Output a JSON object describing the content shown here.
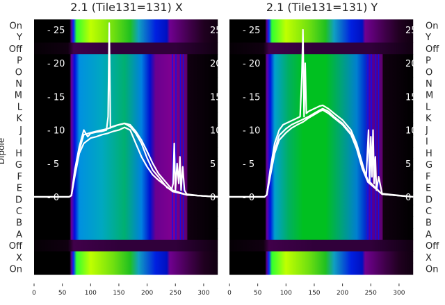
{
  "chart_data": [
    {
      "type": "heatmap",
      "title": "2.1 (Tile131=131) X",
      "ylabel": "Dipole",
      "row_labels": [
        "On",
        "Y",
        "Off",
        "P",
        "O",
        "N",
        "M",
        "L",
        "K",
        "J",
        "I",
        "H",
        "G",
        "F",
        "E",
        "D",
        "C",
        "B",
        "A",
        "Off",
        "X",
        "On"
      ],
      "xticks": [
        0,
        50,
        100,
        150,
        200,
        250,
        300
      ],
      "xlim": [
        0,
        325
      ],
      "inner_yticks": [
        0,
        5,
        10,
        15,
        20,
        25
      ],
      "inner_ylim": [
        0,
        25
      ],
      "overlay_traces": [
        {
          "name": "trace-1",
          "x": [
            0,
            62,
            66,
            72,
            80,
            88,
            95,
            100,
            110,
            120,
            128,
            131,
            133,
            135,
            138,
            145,
            160,
            170,
            180,
            190,
            200,
            210,
            220,
            235,
            243,
            246,
            248,
            250,
            253,
            256,
            258,
            260,
            263,
            266,
            270,
            290,
            325
          ],
          "y": [
            0,
            0,
            0.2,
            4,
            7.5,
            10,
            9,
            9.5,
            9.7,
            9.8,
            10,
            12,
            26,
            10.3,
            10.5,
            10.7,
            11,
            10.5,
            9.5,
            8,
            5.8,
            4,
            3,
            1.4,
            1,
            2,
            8,
            1,
            5,
            2,
            6,
            1,
            4.5,
            1,
            0.4,
            0.2,
            0
          ]
        },
        {
          "name": "trace-2",
          "x": [
            0,
            62,
            66,
            72,
            80,
            88,
            100,
            110,
            120,
            130,
            140,
            150,
            160,
            170,
            180,
            190,
            200,
            210,
            220,
            235,
            245,
            270,
            325
          ],
          "y": [
            0,
            0,
            0.2,
            3,
            6.5,
            8,
            8.8,
            9,
            9.3,
            9.5,
            9.8,
            10,
            10.4,
            10,
            8,
            6,
            4.5,
            3.3,
            2.5,
            1.5,
            0.8,
            0.3,
            0
          ]
        },
        {
          "name": "trace-3",
          "x": [
            0,
            62,
            66,
            72,
            80,
            88,
            100,
            110,
            120,
            130,
            140,
            150,
            160,
            170,
            180,
            190,
            200,
            210,
            220,
            235,
            245,
            270,
            325
          ],
          "y": [
            0,
            0,
            0.2,
            3.5,
            7,
            9.3,
            9.6,
            9.8,
            10,
            10.2,
            10.5,
            10.8,
            11,
            10.8,
            9.8,
            8.5,
            6.8,
            5,
            3.5,
            2,
            1,
            0.3,
            0
          ]
        }
      ]
    },
    {
      "type": "heatmap",
      "title": "2.1 (Tile131=131) Y",
      "row_labels": [
        "On",
        "Y",
        "Off",
        "P",
        "O",
        "N",
        "M",
        "L",
        "K",
        "J",
        "I",
        "H",
        "G",
        "F",
        "E",
        "D",
        "C",
        "B",
        "A",
        "Off",
        "X",
        "On"
      ],
      "xticks": [
        0,
        50,
        100,
        150,
        200,
        250,
        300
      ],
      "xlim": [
        0,
        325
      ],
      "inner_yticks": [
        0,
        5,
        10,
        15,
        20,
        25
      ],
      "inner_ylim": [
        0,
        25
      ],
      "overlay_traces": [
        {
          "name": "trace-1",
          "x": [
            0,
            62,
            66,
            72,
            80,
            88,
            95,
            105,
            115,
            125,
            128,
            130,
            132,
            134,
            136,
            140,
            150,
            160,
            165,
            175,
            185,
            200,
            215,
            225,
            235,
            242,
            246,
            248,
            250,
            252,
            254,
            256,
            258,
            260,
            264,
            270,
            290,
            325
          ],
          "y": [
            0,
            0,
            0.3,
            4,
            8,
            10,
            10.8,
            11.2,
            11.6,
            12,
            18,
            25,
            12,
            20,
            12.5,
            12.8,
            13.2,
            13.6,
            13.7,
            13.2,
            12.5,
            11.5,
            10,
            8,
            5,
            3,
            10,
            2,
            9,
            3,
            10,
            2,
            6,
            1,
            3,
            0.5,
            0.3,
            0
          ]
        },
        {
          "name": "trace-2",
          "x": [
            0,
            62,
            66,
            72,
            80,
            88,
            100,
            110,
            120,
            130,
            140,
            150,
            160,
            165,
            175,
            185,
            200,
            215,
            225,
            235,
            245,
            270,
            325
          ],
          "y": [
            0,
            0,
            0.3,
            3.5,
            7,
            9.2,
            10.2,
            10.8,
            11.2,
            11.6,
            12,
            12.5,
            13,
            13.2,
            12.8,
            12,
            11,
            9.5,
            7.5,
            4.5,
            2.5,
            0.4,
            0
          ]
        },
        {
          "name": "trace-3",
          "x": [
            0,
            62,
            66,
            72,
            80,
            88,
            100,
            110,
            120,
            130,
            140,
            150,
            160,
            165,
            175,
            185,
            200,
            215,
            225,
            235,
            245,
            270,
            325
          ],
          "y": [
            0,
            0,
            0.3,
            3,
            6.5,
            8.5,
            9.6,
            10.3,
            10.8,
            11.2,
            11.8,
            12.3,
            12.8,
            13,
            12.5,
            11.8,
            10.8,
            9.3,
            7.2,
            4.2,
            2.2,
            0.4,
            0
          ]
        }
      ]
    }
  ]
}
